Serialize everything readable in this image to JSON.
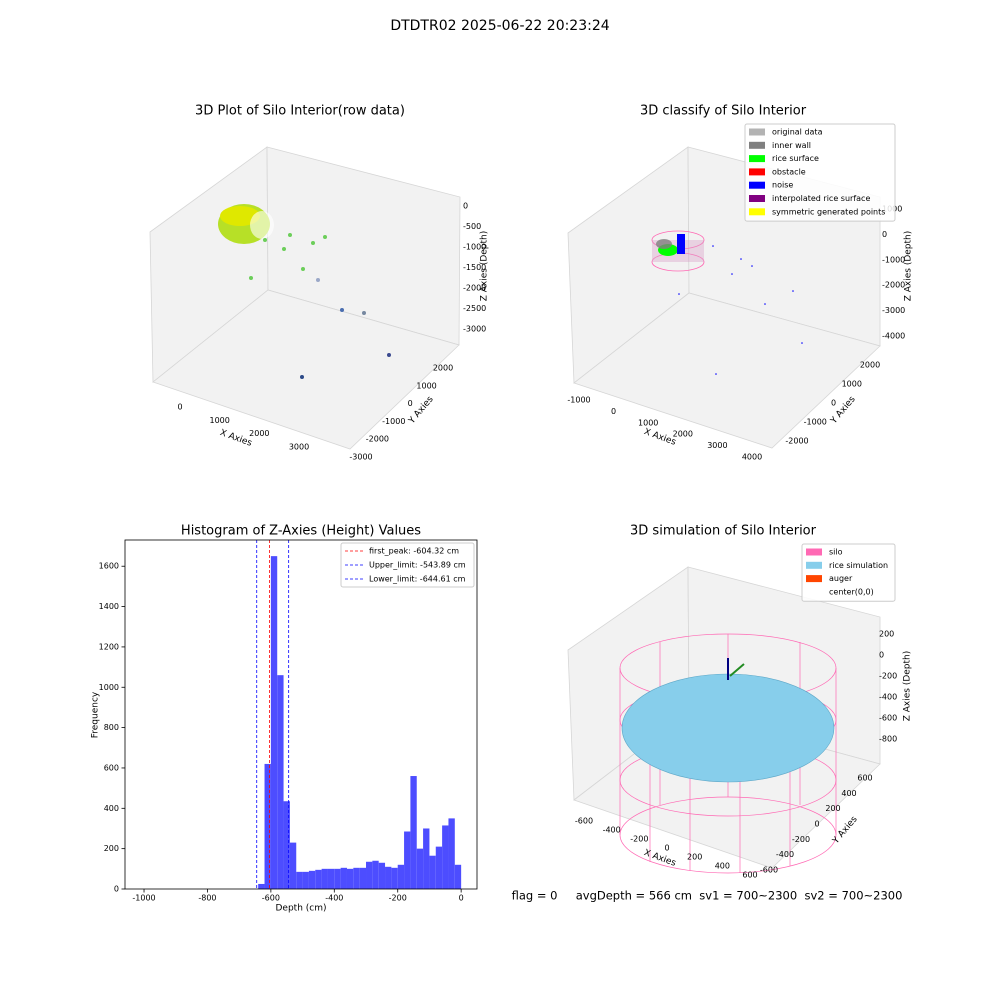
{
  "title": "DTDTR02 2025-06-22 20:23:24",
  "footer": "flag = 0     avgDepth = 566 cm  sv1 = 700~2300  sv2 = 700~2300",
  "chart_data": [
    {
      "type": "scatter3d",
      "title": "3D Plot of Silo Interior(row data)",
      "xlabel": "X Axies",
      "ylabel": "Y Axies",
      "zlabel": "Z Axies (Depth)",
      "xticks": [
        0,
        1000,
        2000,
        3000
      ],
      "yticks": [
        -3000,
        -2000,
        -1000,
        0,
        1000,
        2000
      ],
      "zticks": [
        -3000,
        -2500,
        -2000,
        -1500,
        -1000,
        -500,
        0
      ]
    },
    {
      "type": "scatter3d",
      "title": "3D classify of Silo Interior",
      "xlabel": "X Axies",
      "ylabel": "Y Axies",
      "zlabel": "Z Axies (Depth)",
      "xticks": [
        -1000,
        0,
        1000,
        2000,
        3000,
        4000
      ],
      "yticks": [
        -2000,
        -1000,
        0,
        1000,
        2000
      ],
      "zticks": [
        -4000,
        -3000,
        -2000,
        -1000,
        0,
        1000
      ],
      "legend": [
        {
          "name": "original data",
          "color": "#b3b3b3"
        },
        {
          "name": "inner wall",
          "color": "#808080"
        },
        {
          "name": "rice surface",
          "color": "#00ff00"
        },
        {
          "name": "obstacle",
          "color": "#ff0000"
        },
        {
          "name": "noise",
          "color": "#0000ff"
        },
        {
          "name": "interpolated rice surface",
          "color": "#800080"
        },
        {
          "name": "symmetric generated points",
          "color": "#ffff00"
        }
      ]
    },
    {
      "type": "histogram",
      "title": "Histogram of Z-Axies (Height) Values",
      "xlabel": "Depth (cm)",
      "ylabel": "Frequency",
      "color": "#4d4dff",
      "bins": [
        -640,
        -620,
        -600,
        -580,
        -560,
        -540,
        -520,
        -500,
        -480,
        -460,
        -440,
        -420,
        -400,
        -380,
        -360,
        -340,
        -320,
        -300,
        -280,
        -260,
        -240,
        -220,
        -200,
        -180,
        -160,
        -140,
        -120,
        -100,
        -80,
        -60,
        -40,
        -20,
        0
      ],
      "counts": [
        25,
        620,
        1650,
        1060,
        435,
        230,
        85,
        85,
        90,
        95,
        100,
        100,
        100,
        105,
        100,
        105,
        105,
        135,
        140,
        130,
        110,
        105,
        120,
        285,
        560,
        200,
        300,
        165,
        210,
        315,
        350,
        120
      ],
      "xlim": [
        -1060,
        50
      ],
      "xticks": [
        -1000,
        -800,
        -600,
        -400,
        -200,
        0
      ],
      "ylim": [
        0,
        1730
      ],
      "yticks": [
        0,
        200,
        400,
        600,
        800,
        1000,
        1200,
        1400,
        1600
      ],
      "vlines": [
        {
          "name": "first_peak: -604.32 cm",
          "value": -604.32,
          "color": "#ff0000"
        },
        {
          "name": "Upper_limit: -543.89 cm",
          "value": -543.89,
          "color": "#0000ff"
        },
        {
          "name": "Lower_limit: -644.61 cm",
          "value": -644.61,
          "color": "#0000ff"
        }
      ]
    },
    {
      "type": "surface3d",
      "title": "3D simulation of Silo Interior",
      "xlabel": "X Axies",
      "ylabel": "Y Axies",
      "zlabel": "Z Axies (Depth)",
      "xticks": [
        -600,
        -400,
        -200,
        0,
        200,
        400,
        600
      ],
      "yticks": [
        -600,
        -400,
        -200,
        0,
        200,
        400,
        600
      ],
      "zticks": [
        -800,
        -600,
        -400,
        -200,
        0,
        200
      ],
      "legend": [
        {
          "name": "silo",
          "color": "#ff69b4"
        },
        {
          "name": "rice simulation",
          "color": "#87ceeb"
        },
        {
          "name": "auger",
          "color": "#ff4500"
        },
        {
          "name": "center(0,0)",
          "color": "#ffffff"
        }
      ]
    }
  ]
}
